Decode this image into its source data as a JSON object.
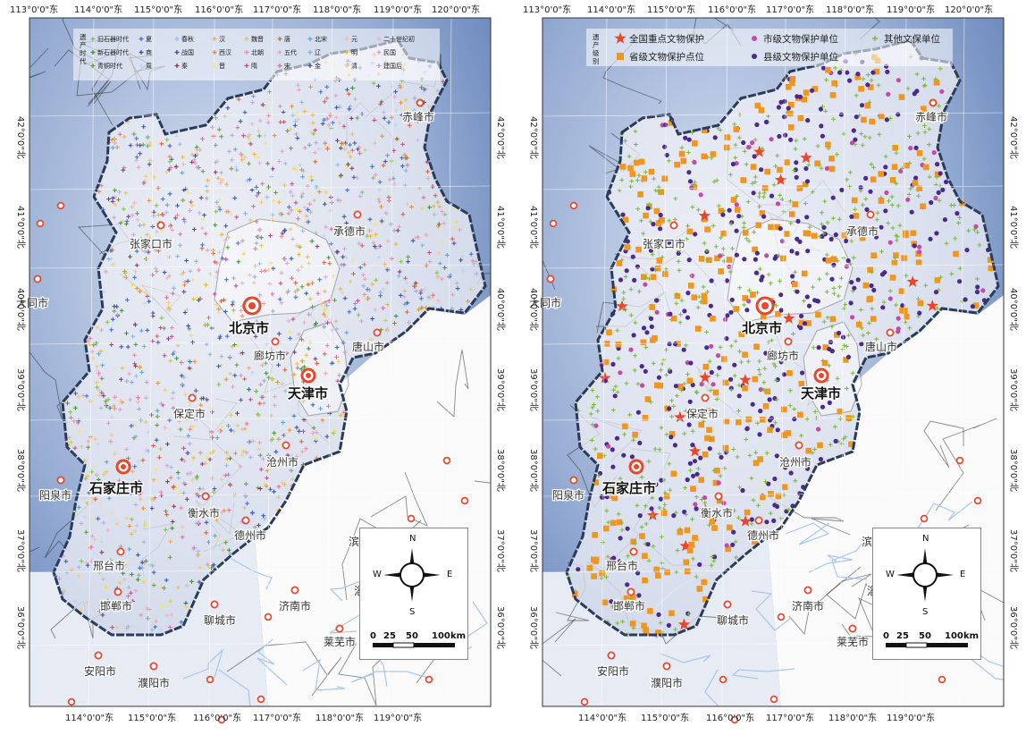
{
  "panels": [
    {
      "id": "left",
      "legend": {
        "title": "遗产时代",
        "items": [
          {
            "label": "旧石器时代",
            "symbol": "+",
            "color": "#7ec544"
          },
          {
            "label": "夏",
            "symbol": "+",
            "color": "#3b6fd1"
          },
          {
            "label": "春秋",
            "symbol": "+",
            "color": "#99b9e6"
          },
          {
            "label": "汉",
            "symbol": "+",
            "color": "#f2b13b"
          },
          {
            "label": "魏晋",
            "symbol": "+",
            "color": "#d9c86e"
          },
          {
            "label": "唐",
            "symbol": "+",
            "color": "#e45a2f"
          },
          {
            "label": "北宋",
            "symbol": "+",
            "color": "#5aa0d6"
          },
          {
            "label": "元",
            "symbol": "+",
            "color": "#f3c77c"
          },
          {
            "label": "二十世纪初",
            "symbol": "+",
            "color": "#e8b4c8"
          },
          {
            "label": "新石器时代",
            "symbol": "+",
            "color": "#3a8d2e"
          },
          {
            "label": "商",
            "symbol": "+",
            "color": "#2d4fa3"
          },
          {
            "label": "战国",
            "symbol": "+",
            "color": "#3a4a8a"
          },
          {
            "label": "西汉",
            "symbol": "+",
            "color": "#f08a30"
          },
          {
            "label": "北朝",
            "symbol": "+",
            "color": "#e88aa0"
          },
          {
            "label": "五代",
            "symbol": "+",
            "color": "#e8a3b3"
          },
          {
            "label": "辽",
            "symbol": "+",
            "color": "#8ab0d8"
          },
          {
            "label": "明",
            "symbol": "+",
            "color": "#f0b848"
          },
          {
            "label": "民国",
            "symbol": "+",
            "color": "#d8a3c8"
          },
          {
            "label": "青铜时代",
            "symbol": "+",
            "color": "#6a9a3a"
          },
          {
            "label": "周",
            "symbol": "+",
            "color": "#bcd6ee"
          },
          {
            "label": "秦",
            "symbol": "+",
            "color": "#8a2a6a"
          },
          {
            "label": "晋",
            "symbol": "+",
            "color": "#f4e27a"
          },
          {
            "label": "隋",
            "symbol": "+",
            "color": "#c04a8a"
          },
          {
            "label": "宋",
            "symbol": "+",
            "color": "#e06a9a"
          },
          {
            "label": "金",
            "symbol": "+",
            "color": "#3a5aa0"
          },
          {
            "label": "清",
            "symbol": "+",
            "color": "#f6d060"
          },
          {
            "label": "建国后",
            "symbol": "+",
            "color": "#c6a0e0"
          }
        ]
      }
    },
    {
      "id": "right",
      "legend": {
        "title": "遗产级别",
        "items": [
          {
            "label": "全国重点文物保护",
            "symbol": "★",
            "color": "#e8472c"
          },
          {
            "label": "市级文物保护单位",
            "symbol": "●",
            "color": "#c44aa8"
          },
          {
            "label": "其他文保单位",
            "symbol": "+",
            "color": "#7ab838"
          },
          {
            "label": "省级文物保护点位",
            "symbol": "■",
            "color": "#f0961e"
          },
          {
            "label": "县级文物保护单位",
            "symbol": "●",
            "color": "#4a2a8a"
          }
        ]
      }
    }
  ],
  "axes": {
    "top": [
      "113°0'0\"东",
      "114°0'0\"东",
      "115°0'0\"东",
      "116°0'0\"东",
      "117°0'0\"东",
      "118°0'0\"东",
      "119°0'0\"东",
      "120°0'0\"东"
    ],
    "bottom": [
      "114°0'0\"东",
      "115°0'0\"东",
      "116°0'0\"东",
      "117°0'0\"东",
      "118°0'0\"东",
      "119°0'0\"东"
    ],
    "lat": [
      "42°0'0\"北",
      "41°0'0\"北",
      "40°0'0\"北",
      "39°0'0\"北",
      "38°0'0\"北",
      "37°0'0\"北",
      "36°0'0\"北"
    ]
  },
  "cities": [
    {
      "name": "北京市",
      "major": true
    },
    {
      "name": "天津市",
      "major": true
    },
    {
      "name": "石家庄市",
      "major": true
    },
    {
      "name": "张家口市",
      "major": false
    },
    {
      "name": "承德市",
      "major": false
    },
    {
      "name": "赤峰市",
      "major": false
    },
    {
      "name": "唐山市",
      "major": false
    },
    {
      "name": "廊坊市",
      "major": false
    },
    {
      "name": "保定市",
      "major": false
    },
    {
      "name": "沧州市",
      "major": false
    },
    {
      "name": "衡水市",
      "major": false
    },
    {
      "name": "德州市",
      "major": false
    },
    {
      "name": "邢台市",
      "major": false
    },
    {
      "name": "邯郸市",
      "major": false
    },
    {
      "name": "济南市",
      "major": false
    },
    {
      "name": "聊城市",
      "major": false
    },
    {
      "name": "莱芜市",
      "major": false
    },
    {
      "name": "安阳市",
      "major": false
    },
    {
      "name": "濮阳市",
      "major": false
    },
    {
      "name": "阳泉市",
      "major": false
    },
    {
      "name": "大同市",
      "major": false
    },
    {
      "name": "滨",
      "major": false
    },
    {
      "name": "淄",
      "major": false
    }
  ],
  "compass": {
    "north": "N",
    "south": "S",
    "east": "E",
    "west": "W"
  },
  "scalebar": {
    "ticks": [
      "0",
      "25",
      "50",
      "100"
    ],
    "unit": "km"
  },
  "colors": {
    "sea": "#fafafa",
    "terrain_dark": "#5b7cb4",
    "terrain_light": "#dbe3f1",
    "region_fill": "#f2f3f7",
    "boundary": "#2a3b5a",
    "city_marker": "#e8472c"
  }
}
